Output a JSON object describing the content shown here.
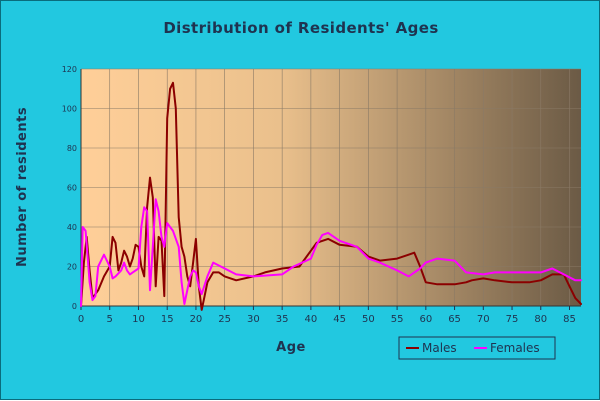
{
  "chart_data": {
    "type": "line",
    "title": "Distribution of Residents' Ages",
    "xlabel": "Age",
    "ylabel": "Number of residents",
    "xlim": [
      0,
      87
    ],
    "ylim": [
      0,
      120
    ],
    "x_ticks": [
      0,
      5,
      10,
      15,
      20,
      25,
      30,
      35,
      40,
      45,
      50,
      55,
      60,
      65,
      70,
      75,
      80,
      85
    ],
    "y_ticks": [
      0,
      20,
      40,
      60,
      80,
      100,
      120
    ],
    "grid": true,
    "legend_position": "bottom-right",
    "background": {
      "left_color": "#ffcf99",
      "right_color": "#6b5a45"
    },
    "series": [
      {
        "name": "Males",
        "color": "#8b0000",
        "points": [
          [
            0,
            0
          ],
          [
            0.5,
            22
          ],
          [
            1,
            35
          ],
          [
            1.5,
            18
          ],
          [
            2,
            4
          ],
          [
            3,
            8
          ],
          [
            4,
            15
          ],
          [
            5,
            20
          ],
          [
            5.5,
            35
          ],
          [
            6,
            32
          ],
          [
            6.5,
            18
          ],
          [
            7,
            22
          ],
          [
            7.5,
            28
          ],
          [
            8,
            25
          ],
          [
            8.5,
            20
          ],
          [
            9,
            24
          ],
          [
            9.5,
            31
          ],
          [
            10,
            30
          ],
          [
            10.5,
            20
          ],
          [
            11,
            15
          ],
          [
            11.5,
            50
          ],
          [
            12,
            65
          ],
          [
            12.5,
            55
          ],
          [
            13,
            10
          ],
          [
            13.5,
            35
          ],
          [
            14,
            33
          ],
          [
            14.5,
            5
          ],
          [
            15,
            95
          ],
          [
            15.5,
            110
          ],
          [
            16,
            113
          ],
          [
            16.5,
            100
          ],
          [
            17,
            45
          ],
          [
            17.5,
            30
          ],
          [
            18,
            25
          ],
          [
            18.5,
            15
          ],
          [
            19,
            10
          ],
          [
            19.5,
            22
          ],
          [
            20,
            34
          ],
          [
            20.5,
            10
          ],
          [
            21,
            -2
          ],
          [
            21.5,
            5
          ],
          [
            22,
            12
          ],
          [
            23,
            17
          ],
          [
            24,
            17
          ],
          [
            25,
            15
          ],
          [
            27,
            13
          ],
          [
            30,
            15
          ],
          [
            32,
            17
          ],
          [
            35,
            19
          ],
          [
            38,
            20
          ],
          [
            40,
            28
          ],
          [
            41,
            32
          ],
          [
            43,
            34
          ],
          [
            45,
            31
          ],
          [
            48,
            30
          ],
          [
            50,
            25
          ],
          [
            52,
            23
          ],
          [
            55,
            24
          ],
          [
            57,
            26
          ],
          [
            58,
            27
          ],
          [
            59,
            20
          ],
          [
            60,
            12
          ],
          [
            62,
            11
          ],
          [
            65,
            11
          ],
          [
            67,
            12
          ],
          [
            68,
            13
          ],
          [
            70,
            14
          ],
          [
            72,
            13
          ],
          [
            75,
            12
          ],
          [
            78,
            12
          ],
          [
            80,
            13
          ],
          [
            82,
            16
          ],
          [
            84,
            16
          ],
          [
            85,
            10
          ],
          [
            86,
            4
          ],
          [
            87,
            1
          ]
        ]
      },
      {
        "name": "Females",
        "color": "#ff00ff",
        "points": [
          [
            0,
            0
          ],
          [
            0.3,
            40
          ],
          [
            0.8,
            38
          ],
          [
            1.5,
            12
          ],
          [
            2,
            3
          ],
          [
            2.5,
            5
          ],
          [
            3,
            20
          ],
          [
            4,
            26
          ],
          [
            5,
            20
          ],
          [
            5.5,
            14
          ],
          [
            6,
            15
          ],
          [
            7,
            18
          ],
          [
            7.5,
            22
          ],
          [
            8,
            18
          ],
          [
            8.5,
            16
          ],
          [
            9,
            17
          ],
          [
            10,
            19
          ],
          [
            10.5,
            40
          ],
          [
            11,
            50
          ],
          [
            11.5,
            48
          ],
          [
            12,
            8
          ],
          [
            12.5,
            30
          ],
          [
            13,
            54
          ],
          [
            13.5,
            48
          ],
          [
            14,
            35
          ],
          [
            14.5,
            30
          ],
          [
            15,
            42
          ],
          [
            16,
            38
          ],
          [
            17,
            30
          ],
          [
            17.5,
            12
          ],
          [
            18,
            1
          ],
          [
            18.5,
            8
          ],
          [
            19,
            15
          ],
          [
            19.5,
            18
          ],
          [
            20,
            17
          ],
          [
            20.5,
            10
          ],
          [
            21,
            6
          ],
          [
            22,
            15
          ],
          [
            23,
            22
          ],
          [
            25,
            19
          ],
          [
            27,
            16
          ],
          [
            30,
            15
          ],
          [
            35,
            16
          ],
          [
            37,
            20
          ],
          [
            40,
            24
          ],
          [
            41,
            31
          ],
          [
            42,
            36
          ],
          [
            43,
            37
          ],
          [
            45,
            33
          ],
          [
            48,
            30
          ],
          [
            50,
            24
          ],
          [
            52,
            22
          ],
          [
            55,
            18
          ],
          [
            57,
            15
          ],
          [
            59,
            19
          ],
          [
            60,
            22
          ],
          [
            62,
            24
          ],
          [
            65,
            23
          ],
          [
            67,
            17
          ],
          [
            70,
            16
          ],
          [
            72,
            17
          ],
          [
            75,
            17
          ],
          [
            78,
            17
          ],
          [
            80,
            17
          ],
          [
            82,
            19
          ],
          [
            84,
            16
          ],
          [
            86,
            13
          ],
          [
            87,
            13
          ]
        ]
      }
    ]
  }
}
